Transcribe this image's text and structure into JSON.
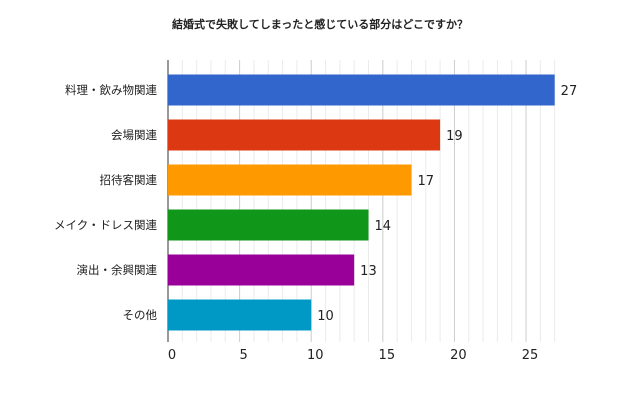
{
  "chart_data": {
    "type": "bar",
    "orientation": "horizontal",
    "title": "結婚式で失敗してしまったと感じている部分はどこですか？",
    "categories": [
      "料理・飲み物関連",
      "会場関連",
      "招待客関連",
      "メイク・ドレス関連",
      "演出・余興関連",
      "その他"
    ],
    "values": [
      27,
      19,
      17,
      14,
      13,
      10
    ],
    "colors": [
      "#3366cc",
      "#dc3912",
      "#ff9900",
      "#109618",
      "#990099",
      "#0099c6"
    ],
    "xlim": [
      0,
      28
    ],
    "xticks": [
      0,
      5,
      10,
      15,
      20,
      25
    ],
    "xlabel": "",
    "ylabel": "",
    "grid": true,
    "minor_grid_step": 1,
    "data_labels": true
  }
}
